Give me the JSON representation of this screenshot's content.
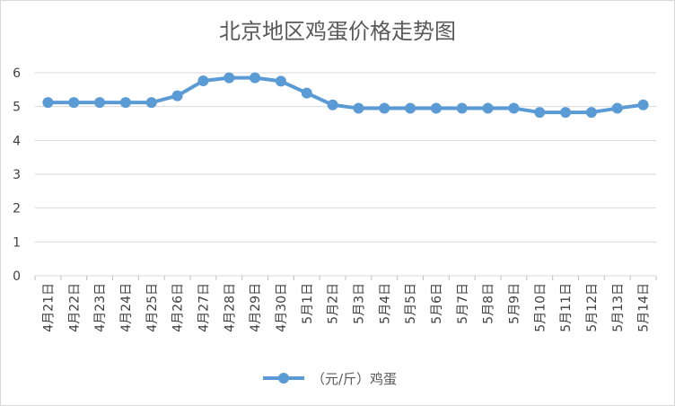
{
  "chart_data": {
    "type": "line",
    "title": "北京地区鸡蛋价格走势图",
    "categories": [
      "4月21日",
      "4月22日",
      "4月23日",
      "4月24日",
      "4月25日",
      "4月26日",
      "4月27日",
      "4月28日",
      "4月29日",
      "4月30日",
      "5月1日",
      "5月2日",
      "5月3日",
      "5月4日",
      "5月5日",
      "5月6日",
      "5月7日",
      "5月8日",
      "5月9日",
      "5月10日",
      "5月11日",
      "5月12日",
      "5月13日",
      "5月14日"
    ],
    "series": [
      {
        "name": "（元/斤）鸡蛋",
        "values": [
          5.12,
          5.12,
          5.12,
          5.12,
          5.12,
          5.32,
          5.76,
          5.85,
          5.85,
          5.75,
          5.4,
          5.05,
          4.95,
          4.95,
          4.95,
          4.95,
          4.95,
          4.95,
          4.95,
          4.83,
          4.83,
          4.83,
          4.95,
          5.05
        ],
        "color": "#5b9bd5"
      }
    ],
    "ylim": [
      0,
      6
    ],
    "yticks": [
      0,
      1,
      2,
      3,
      4,
      5,
      6
    ],
    "grid": true,
    "legend": "bottom"
  }
}
